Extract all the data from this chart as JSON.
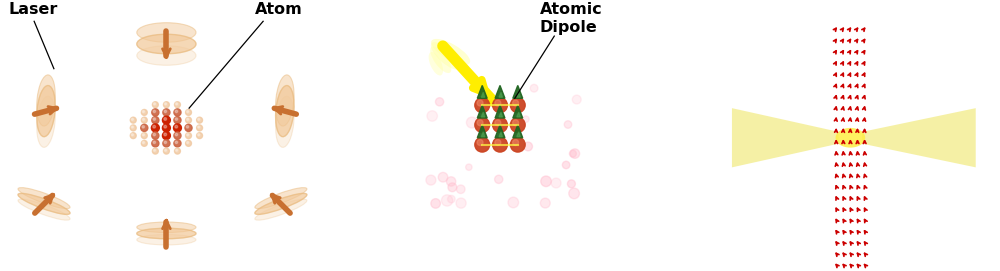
{
  "bg_color": "#ffffff",
  "laser_disk_face": "#f2c99a",
  "laser_disk_edge": "#e8b87a",
  "laser_arrow_color": "#c87030",
  "atom_inner_color": "#cc2200",
  "atom_mid_color": "#cc6644",
  "atom_outer_color": "#f0c8a0",
  "yellow_color": "#ffee00",
  "yellow_light": "#ffffaa",
  "dipole_atom_color": "#cc4422",
  "dipole_cone_color": "#226622",
  "red_arrow_color": "#cc0000",
  "beam_color": "#f5f0a0",
  "beam_inner_color": "#e8e050",
  "labels": {
    "laser": "Laser",
    "atom": "Atom",
    "atomic": "Atomic",
    "dipole": "Dipole"
  }
}
